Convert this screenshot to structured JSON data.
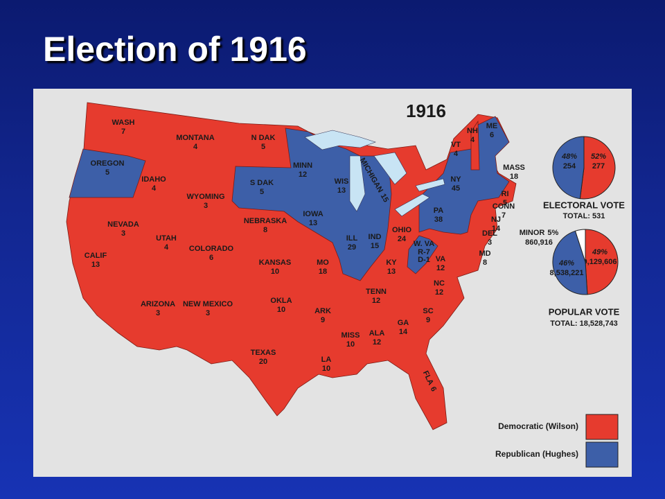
{
  "slide": {
    "title": "Election of 1916"
  },
  "map": {
    "title": "1916",
    "states": [
      {
        "name": "WASH",
        "votes": 7,
        "color": "#e63b2e"
      },
      {
        "name": "OREGON",
        "votes": 5,
        "color": "#3d5fa8"
      },
      {
        "name": "IDAHO",
        "votes": 4,
        "color": "#e63b2e"
      },
      {
        "name": "MONTANA",
        "votes": 4,
        "color": "#e63b2e"
      },
      {
        "name": "N DAK",
        "votes": 5,
        "color": "#e63b2e"
      },
      {
        "name": "WYOMING",
        "votes": 3,
        "color": "#e63b2e"
      },
      {
        "name": "S DAK",
        "votes": 5,
        "color": "#3d5fa8"
      },
      {
        "name": "MINN",
        "votes": 12,
        "color": "#3d5fa8"
      },
      {
        "name": "WIS",
        "votes": 13,
        "color": "#3d5fa8"
      },
      {
        "name": "MICHIGAN",
        "votes": 15,
        "color": "#3d5fa8"
      },
      {
        "name": "NEVADA",
        "votes": 3,
        "color": "#e63b2e"
      },
      {
        "name": "CALIF",
        "votes": 13,
        "color": "#e63b2e"
      },
      {
        "name": "UTAH",
        "votes": 4,
        "color": "#e63b2e"
      },
      {
        "name": "COLORADO",
        "votes": 6,
        "color": "#e63b2e"
      },
      {
        "name": "NEBRASKA",
        "votes": 8,
        "color": "#e63b2e"
      },
      {
        "name": "IOWA",
        "votes": 13,
        "color": "#3d5fa8"
      },
      {
        "name": "ILL",
        "votes": 29,
        "color": "#3d5fa8"
      },
      {
        "name": "IND",
        "votes": 15,
        "color": "#3d5fa8"
      },
      {
        "name": "OHIO",
        "votes": 24,
        "color": "#e63b2e"
      },
      {
        "name": "KANSAS",
        "votes": 10,
        "color": "#e63b2e"
      },
      {
        "name": "MO",
        "votes": 18,
        "color": "#e63b2e"
      },
      {
        "name": "KY",
        "votes": 13,
        "color": "#e63b2e"
      },
      {
        "name": "W. VA",
        "split": [
          "R-7",
          "D-1"
        ],
        "color": "#3d5fa8"
      },
      {
        "name": "VA",
        "votes": 12,
        "color": "#e63b2e"
      },
      {
        "name": "MD",
        "votes": 8,
        "color": "#e63b2e"
      },
      {
        "name": "DEL",
        "votes": 3,
        "color": "#3d5fa8"
      },
      {
        "name": "NJ",
        "votes": 14,
        "color": "#3d5fa8"
      },
      {
        "name": "CONN",
        "votes": 7,
        "color": "#3d5fa8"
      },
      {
        "name": "RI",
        "votes": 5,
        "color": "#3d5fa8"
      },
      {
        "name": "PA",
        "votes": 38,
        "color": "#3d5fa8"
      },
      {
        "name": "NY",
        "votes": 45,
        "color": "#3d5fa8"
      },
      {
        "name": "VT",
        "votes": 4,
        "color": "#3d5fa8"
      },
      {
        "name": "NH",
        "votes": 4,
        "color": "#e63b2e"
      },
      {
        "name": "ME",
        "votes": 6,
        "color": "#3d5fa8"
      },
      {
        "name": "MASS",
        "votes": 18,
        "color": "#3d5fa8"
      },
      {
        "name": "ARIZONA",
        "votes": 3,
        "color": "#e63b2e"
      },
      {
        "name": "NEW MEXICO",
        "votes": 3,
        "color": "#e63b2e"
      },
      {
        "name": "OKLA",
        "votes": 10,
        "color": "#e63b2e"
      },
      {
        "name": "ARK",
        "votes": 9,
        "color": "#e63b2e"
      },
      {
        "name": "TENN",
        "votes": 12,
        "color": "#e63b2e"
      },
      {
        "name": "NC",
        "votes": 12,
        "color": "#e63b2e"
      },
      {
        "name": "SC",
        "votes": 9,
        "color": "#e63b2e"
      },
      {
        "name": "GA",
        "votes": 14,
        "color": "#e63b2e"
      },
      {
        "name": "ALA",
        "votes": 12,
        "color": "#e63b2e"
      },
      {
        "name": "MISS",
        "votes": 10,
        "color": "#e63b2e"
      },
      {
        "name": "LA",
        "votes": 10,
        "color": "#e63b2e"
      },
      {
        "name": "TEXAS",
        "votes": 20,
        "color": "#e63b2e"
      },
      {
        "name": "FLA",
        "votes": 6,
        "color": "#e63b2e"
      }
    ]
  },
  "electoral_vote": {
    "heading": "ELECTORAL VOTE",
    "total": "TOTAL: 531",
    "slices": [
      {
        "percent": {
          "value": 52,
          "label": "52%"
        },
        "votes": 277,
        "color": "#e63b2e"
      },
      {
        "percent": {
          "value": 48,
          "label": "48%"
        },
        "votes": 254,
        "color": "#3d5fa8"
      }
    ]
  },
  "popular_vote": {
    "heading": "POPULAR VOTE",
    "total": "TOTAL: 18,528,743",
    "slices": [
      {
        "percent": {
          "value": 49,
          "label": "49%"
        },
        "votes": {
          "value": 9129606,
          "label": "9,129,606"
        },
        "color": "#e63b2e"
      },
      {
        "percent": {
          "value": 46,
          "label": "46%"
        },
        "votes": {
          "value": 8538221,
          "label": "8,538,221"
        },
        "color": "#3d5fa8"
      },
      {
        "name": "MINOR",
        "percent": {
          "value": 5,
          "label": "5%"
        },
        "votes": {
          "value": 860916,
          "label": "860,916"
        },
        "color": "#ffffff"
      }
    ]
  },
  "legend": [
    {
      "label": "Democratic (Wilson)",
      "color": "#e63b2e"
    },
    {
      "label": "Republican (Hughes)",
      "color": "#3d5fa8"
    }
  ]
}
